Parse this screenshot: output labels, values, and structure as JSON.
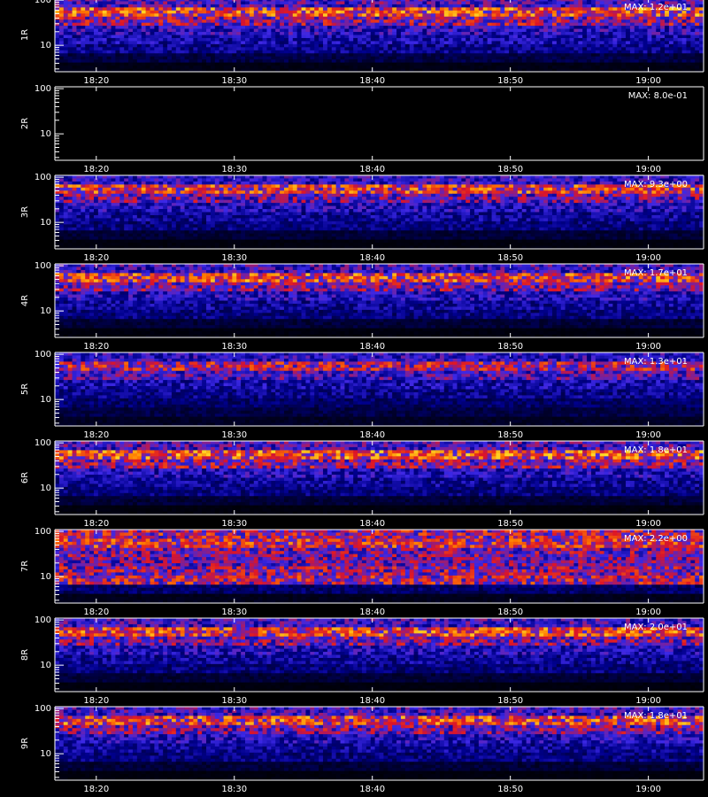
{
  "chart_data": [
    {
      "type": "heatmap",
      "ylabel": "1R",
      "annotation": "MAX: 1.2e+01",
      "ylog": true,
      "ylim": [
        2.6,
        110
      ],
      "yticks": [
        10,
        100
      ],
      "xlim": [
        1097,
        1144
      ],
      "xticks": [
        {
          "value": 1100,
          "label": "18:20"
        },
        {
          "value": 1110,
          "label": "18:30"
        },
        {
          "value": 1120,
          "label": "18:40"
        },
        {
          "value": 1130,
          "label": "18:50"
        },
        {
          "value": 1140,
          "label": "19:00"
        }
      ],
      "profile": [
        0.35,
        0.62,
        0.45,
        0.3,
        0.25,
        0.2,
        0.1,
        0.03
      ]
    },
    {
      "type": "heatmap",
      "ylabel": "2R",
      "annotation": "MAX: 8.0e-01",
      "ylog": true,
      "ylim": [
        2.6,
        110
      ],
      "yticks": [
        10,
        100
      ],
      "xlim": [
        1097,
        1144
      ],
      "xticks": [
        {
          "value": 1100,
          "label": "18:20"
        },
        {
          "value": 1110,
          "label": "18:30"
        },
        {
          "value": 1120,
          "label": "18:40"
        },
        {
          "value": 1130,
          "label": "18:50"
        },
        {
          "value": 1140,
          "label": "19:00"
        }
      ],
      "profile": [
        0,
        0,
        0,
        0,
        0,
        0,
        0,
        0
      ]
    },
    {
      "type": "heatmap",
      "ylabel": "3R",
      "annotation": "MAX: 9.3e+00",
      "ylog": true,
      "ylim": [
        2.6,
        110
      ],
      "yticks": [
        10,
        100
      ],
      "xlim": [
        1097,
        1144
      ],
      "xticks": [
        {
          "value": 1100,
          "label": "18:20"
        },
        {
          "value": 1110,
          "label": "18:30"
        },
        {
          "value": 1120,
          "label": "18:40"
        },
        {
          "value": 1130,
          "label": "18:50"
        },
        {
          "value": 1140,
          "label": "19:00"
        }
      ],
      "profile": [
        0.3,
        0.58,
        0.4,
        0.28,
        0.22,
        0.18,
        0.08,
        0.02
      ]
    },
    {
      "type": "heatmap",
      "ylabel": "4R",
      "annotation": "MAX: 1.7e+01",
      "ylog": true,
      "ylim": [
        2.6,
        110
      ],
      "yticks": [
        10,
        100
      ],
      "xlim": [
        1097,
        1144
      ],
      "xticks": [
        {
          "value": 1100,
          "label": "18:20"
        },
        {
          "value": 1110,
          "label": "18:30"
        },
        {
          "value": 1120,
          "label": "18:40"
        },
        {
          "value": 1130,
          "label": "18:50"
        },
        {
          "value": 1140,
          "label": "19:00"
        }
      ],
      "profile": [
        0.33,
        0.6,
        0.42,
        0.28,
        0.22,
        0.18,
        0.08,
        0.02
      ]
    },
    {
      "type": "heatmap",
      "ylabel": "5R",
      "annotation": "MAX: 1.3e+01",
      "ylog": true,
      "ylim": [
        2.6,
        110
      ],
      "yticks": [
        10,
        100
      ],
      "xlim": [
        1097,
        1144
      ],
      "xticks": [
        {
          "value": 1100,
          "label": "18:20"
        },
        {
          "value": 1110,
          "label": "18:30"
        },
        {
          "value": 1120,
          "label": "18:40"
        },
        {
          "value": 1130,
          "label": "18:50"
        },
        {
          "value": 1140,
          "label": "19:00"
        }
      ],
      "profile": [
        0.3,
        0.5,
        0.35,
        0.25,
        0.2,
        0.15,
        0.1,
        0.05
      ]
    },
    {
      "type": "heatmap",
      "ylabel": "6R",
      "annotation": "MAX: 1.8e+01",
      "ylog": true,
      "ylim": [
        2.6,
        110
      ],
      "yticks": [
        10,
        100
      ],
      "xlim": [
        1097,
        1144
      ],
      "xticks": [
        {
          "value": 1100,
          "label": "18:20"
        },
        {
          "value": 1110,
          "label": "18:30"
        },
        {
          "value": 1120,
          "label": "18:40"
        },
        {
          "value": 1130,
          "label": "18:50"
        },
        {
          "value": 1140,
          "label": "19:00"
        }
      ],
      "profile": [
        0.35,
        0.62,
        0.45,
        0.28,
        0.22,
        0.18,
        0.08,
        0.02
      ]
    },
    {
      "type": "heatmap",
      "ylabel": "7R",
      "annotation": "MAX: 2.2e+00",
      "ylog": true,
      "ylim": [
        2.6,
        110
      ],
      "yticks": [
        10,
        100
      ],
      "xlim": [
        1097,
        1144
      ],
      "xticks": [
        {
          "value": 1100,
          "label": "18:20"
        },
        {
          "value": 1110,
          "label": "18:30"
        },
        {
          "value": 1120,
          "label": "18:40"
        },
        {
          "value": 1130,
          "label": "18:50"
        },
        {
          "value": 1140,
          "label": "19:00"
        }
      ],
      "profile": [
        0.5,
        0.55,
        0.42,
        0.4,
        0.45,
        0.5,
        0.15,
        0.04
      ]
    },
    {
      "type": "heatmap",
      "ylabel": "8R",
      "annotation": "MAX: 2.0e+01",
      "ylog": true,
      "ylim": [
        2.6,
        110
      ],
      "yticks": [
        10,
        100
      ],
      "xlim": [
        1097,
        1144
      ],
      "xticks": [
        {
          "value": 1100,
          "label": "18:20"
        },
        {
          "value": 1110,
          "label": "18:30"
        },
        {
          "value": 1120,
          "label": "18:40"
        },
        {
          "value": 1130,
          "label": "18:50"
        },
        {
          "value": 1140,
          "label": "19:00"
        }
      ],
      "profile": [
        0.33,
        0.6,
        0.42,
        0.28,
        0.22,
        0.18,
        0.08,
        0.02
      ]
    },
    {
      "type": "heatmap",
      "ylabel": "9R",
      "annotation": "MAX: 1.8e+01",
      "ylog": true,
      "ylim": [
        2.6,
        110
      ],
      "yticks": [
        10,
        100
      ],
      "xlim": [
        1097,
        1144
      ],
      "xticks": [
        {
          "value": 1100,
          "label": "18:20"
        },
        {
          "value": 1110,
          "label": "18:30"
        },
        {
          "value": 1120,
          "label": "18:40"
        },
        {
          "value": 1130,
          "label": "18:50"
        },
        {
          "value": 1140,
          "label": "19:00"
        }
      ],
      "profile": [
        0.33,
        0.6,
        0.42,
        0.28,
        0.22,
        0.18,
        0.08,
        0.02
      ]
    }
  ]
}
